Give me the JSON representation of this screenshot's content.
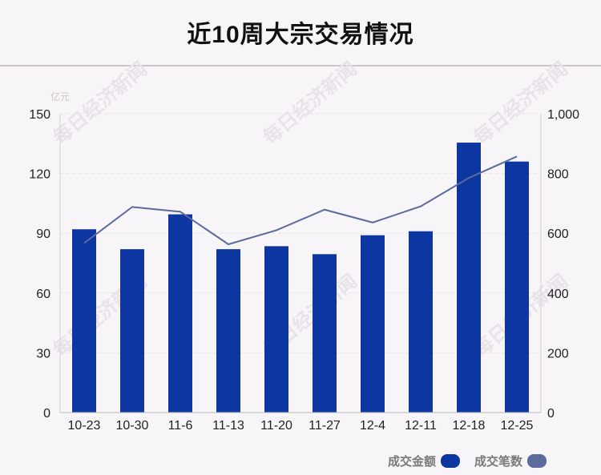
{
  "title": "近10周大宗交易情况",
  "watermark": "每日经济新闻",
  "chart_data": {
    "type": "bar",
    "categories": [
      "10-23",
      "10-30",
      "11-6",
      "11-13",
      "11-20",
      "11-27",
      "12-4",
      "12-11",
      "12-18",
      "12-25"
    ],
    "left_axis": {
      "unit": "亿元",
      "ylim": [
        0,
        150
      ],
      "ticks": [
        "0",
        "30",
        "60",
        "90",
        "120",
        "150"
      ]
    },
    "right_axis": {
      "ylim": [
        0,
        1000
      ],
      "ticks": [
        "0",
        "200",
        "400",
        "600",
        "800",
        "1,000"
      ]
    },
    "series": [
      {
        "name": "成交金额",
        "type": "bar",
        "axis": "left",
        "color": "#0d36a0",
        "values": [
          92,
          82,
          99.5,
          82,
          83.5,
          79.5,
          89,
          91,
          135.5,
          126
        ]
      },
      {
        "name": "成交笔数",
        "type": "line",
        "axis": "right",
        "color": "#5a6b9c",
        "values": [
          567,
          688,
          672,
          563,
          610,
          679,
          636,
          690,
          785,
          857
        ]
      }
    ],
    "grid": true,
    "legend": "bottom-right"
  }
}
